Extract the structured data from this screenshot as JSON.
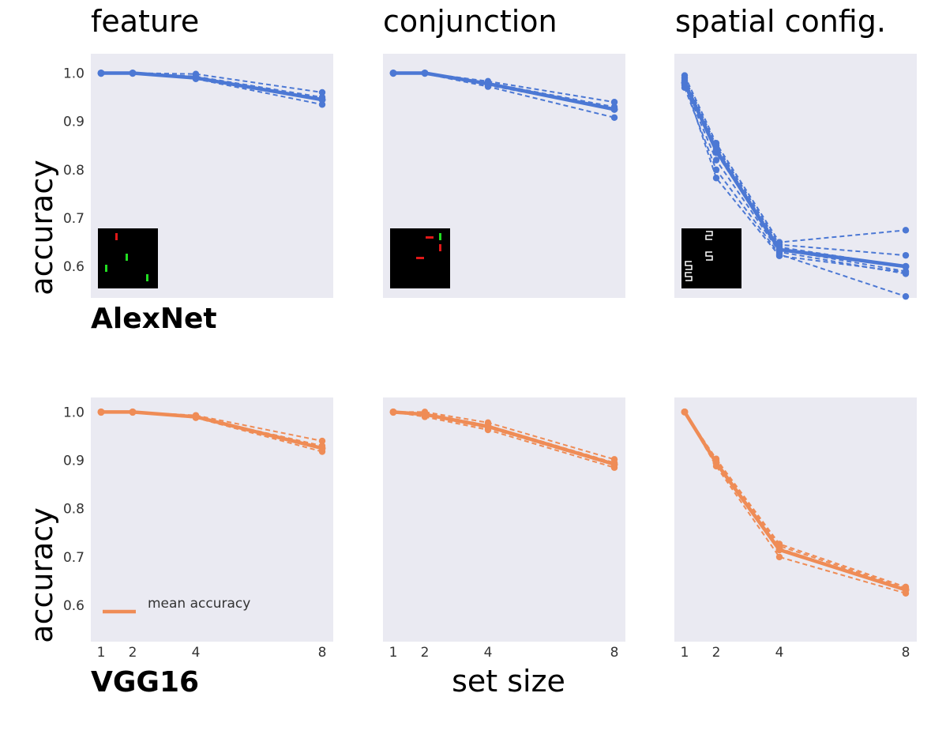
{
  "chart_data": [
    {
      "type": "line",
      "col_title": "feature",
      "row_label": "AlexNet",
      "ylabel": "accuracy",
      "xlabel": "",
      "x": [
        1,
        2,
        4,
        8
      ],
      "x_ticks": [
        "1",
        "2",
        "4",
        "8"
      ],
      "ylim": [
        0.535,
        1.04
      ],
      "y_ticks": [
        "0.6",
        "0.7",
        "0.8",
        "0.9",
        "1.0"
      ],
      "color": "#4c78d4",
      "grid": false,
      "show_x_ticks": false,
      "show_y_ticks": true,
      "inset": "feature",
      "mean": [
        1.0,
        1.0,
        0.99,
        0.945
      ],
      "runs": [
        [
          0.999,
          1.0,
          0.998,
          0.96
        ],
        [
          1.0,
          1.0,
          0.993,
          0.95
        ],
        [
          1.0,
          0.999,
          0.99,
          0.945
        ],
        [
          0.999,
          1.0,
          0.988,
          0.935
        ]
      ]
    },
    {
      "type": "line",
      "col_title": "conjunction",
      "x": [
        1,
        2,
        4,
        8
      ],
      "x_ticks": [
        "1",
        "2",
        "4",
        "8"
      ],
      "ylim": [
        0.535,
        1.04
      ],
      "color": "#4c78d4",
      "grid": false,
      "show_x_ticks": false,
      "show_y_ticks": false,
      "inset": "conjunction",
      "mean": [
        1.0,
        1.0,
        0.978,
        0.925
      ],
      "runs": [
        [
          1.0,
          1.0,
          0.983,
          0.94
        ],
        [
          1.0,
          1.0,
          0.98,
          0.93
        ],
        [
          0.999,
          1.0,
          0.975,
          0.925
        ],
        [
          1.0,
          0.999,
          0.972,
          0.908
        ]
      ]
    },
    {
      "type": "line",
      "col_title": "spatial config.",
      "x": [
        1,
        2,
        4,
        8
      ],
      "x_ticks": [
        "1",
        "2",
        "4",
        "8"
      ],
      "ylim": [
        0.535,
        1.04
      ],
      "color": "#4c78d4",
      "grid": false,
      "show_x_ticks": false,
      "show_y_ticks": false,
      "inset": "spatial",
      "mean": [
        0.98,
        0.84,
        0.635,
        0.6
      ],
      "runs": [
        [
          0.995,
          0.855,
          0.65,
          0.675
        ],
        [
          0.99,
          0.85,
          0.645,
          0.623
        ],
        [
          0.985,
          0.845,
          0.64,
          0.6
        ],
        [
          0.98,
          0.835,
          0.635,
          0.59
        ],
        [
          0.975,
          0.82,
          0.63,
          0.585
        ],
        [
          0.97,
          0.8,
          0.625,
          0.538
        ],
        [
          0.98,
          0.783,
          0.622,
          0.588
        ]
      ]
    },
    {
      "type": "line",
      "row_label": "VGG16",
      "ylabel": "accuracy",
      "x": [
        1,
        2,
        4,
        8
      ],
      "x_ticks": [
        "1",
        "2",
        "4",
        "8"
      ],
      "ylim": [
        0.525,
        1.03
      ],
      "y_ticks": [
        "0.6",
        "0.7",
        "0.8",
        "0.9",
        "1.0"
      ],
      "color": "#ef8c56",
      "grid": false,
      "show_x_ticks": true,
      "show_y_ticks": true,
      "legend": {
        "label": "mean accuracy",
        "placement": "lower-left"
      },
      "mean": [
        1.0,
        1.0,
        0.99,
        0.925
      ],
      "runs": [
        [
          1.0,
          1.0,
          0.993,
          0.94
        ],
        [
          0.999,
          1.0,
          0.99,
          0.93
        ],
        [
          1.0,
          0.999,
          0.988,
          0.918
        ]
      ]
    },
    {
      "type": "line",
      "xlabel": "set size",
      "x": [
        1,
        2,
        4,
        8
      ],
      "x_ticks": [
        "1",
        "2",
        "4",
        "8"
      ],
      "ylim": [
        0.525,
        1.03
      ],
      "color": "#ef8c56",
      "grid": false,
      "show_x_ticks": true,
      "show_y_ticks": false,
      "mean": [
        1.0,
        0.995,
        0.97,
        0.892
      ],
      "runs": [
        [
          1.0,
          1.0,
          0.978,
          0.902
        ],
        [
          1.0,
          0.998,
          0.972,
          0.895
        ],
        [
          0.999,
          0.993,
          0.967,
          0.89
        ],
        [
          1.0,
          0.99,
          0.963,
          0.885
        ]
      ]
    },
    {
      "type": "line",
      "x": [
        1,
        2,
        4,
        8
      ],
      "x_ticks": [
        "1",
        "2",
        "4",
        "8"
      ],
      "ylim": [
        0.525,
        1.03
      ],
      "color": "#ef8c56",
      "grid": false,
      "show_x_ticks": true,
      "show_y_ticks": false,
      "mean": [
        1.0,
        0.895,
        0.715,
        0.632
      ],
      "runs": [
        [
          1.0,
          0.903,
          0.727,
          0.638
        ],
        [
          1.0,
          0.9,
          0.723,
          0.635
        ],
        [
          1.0,
          0.895,
          0.718,
          0.632
        ],
        [
          1.0,
          0.888,
          0.7,
          0.625
        ]
      ]
    }
  ]
}
